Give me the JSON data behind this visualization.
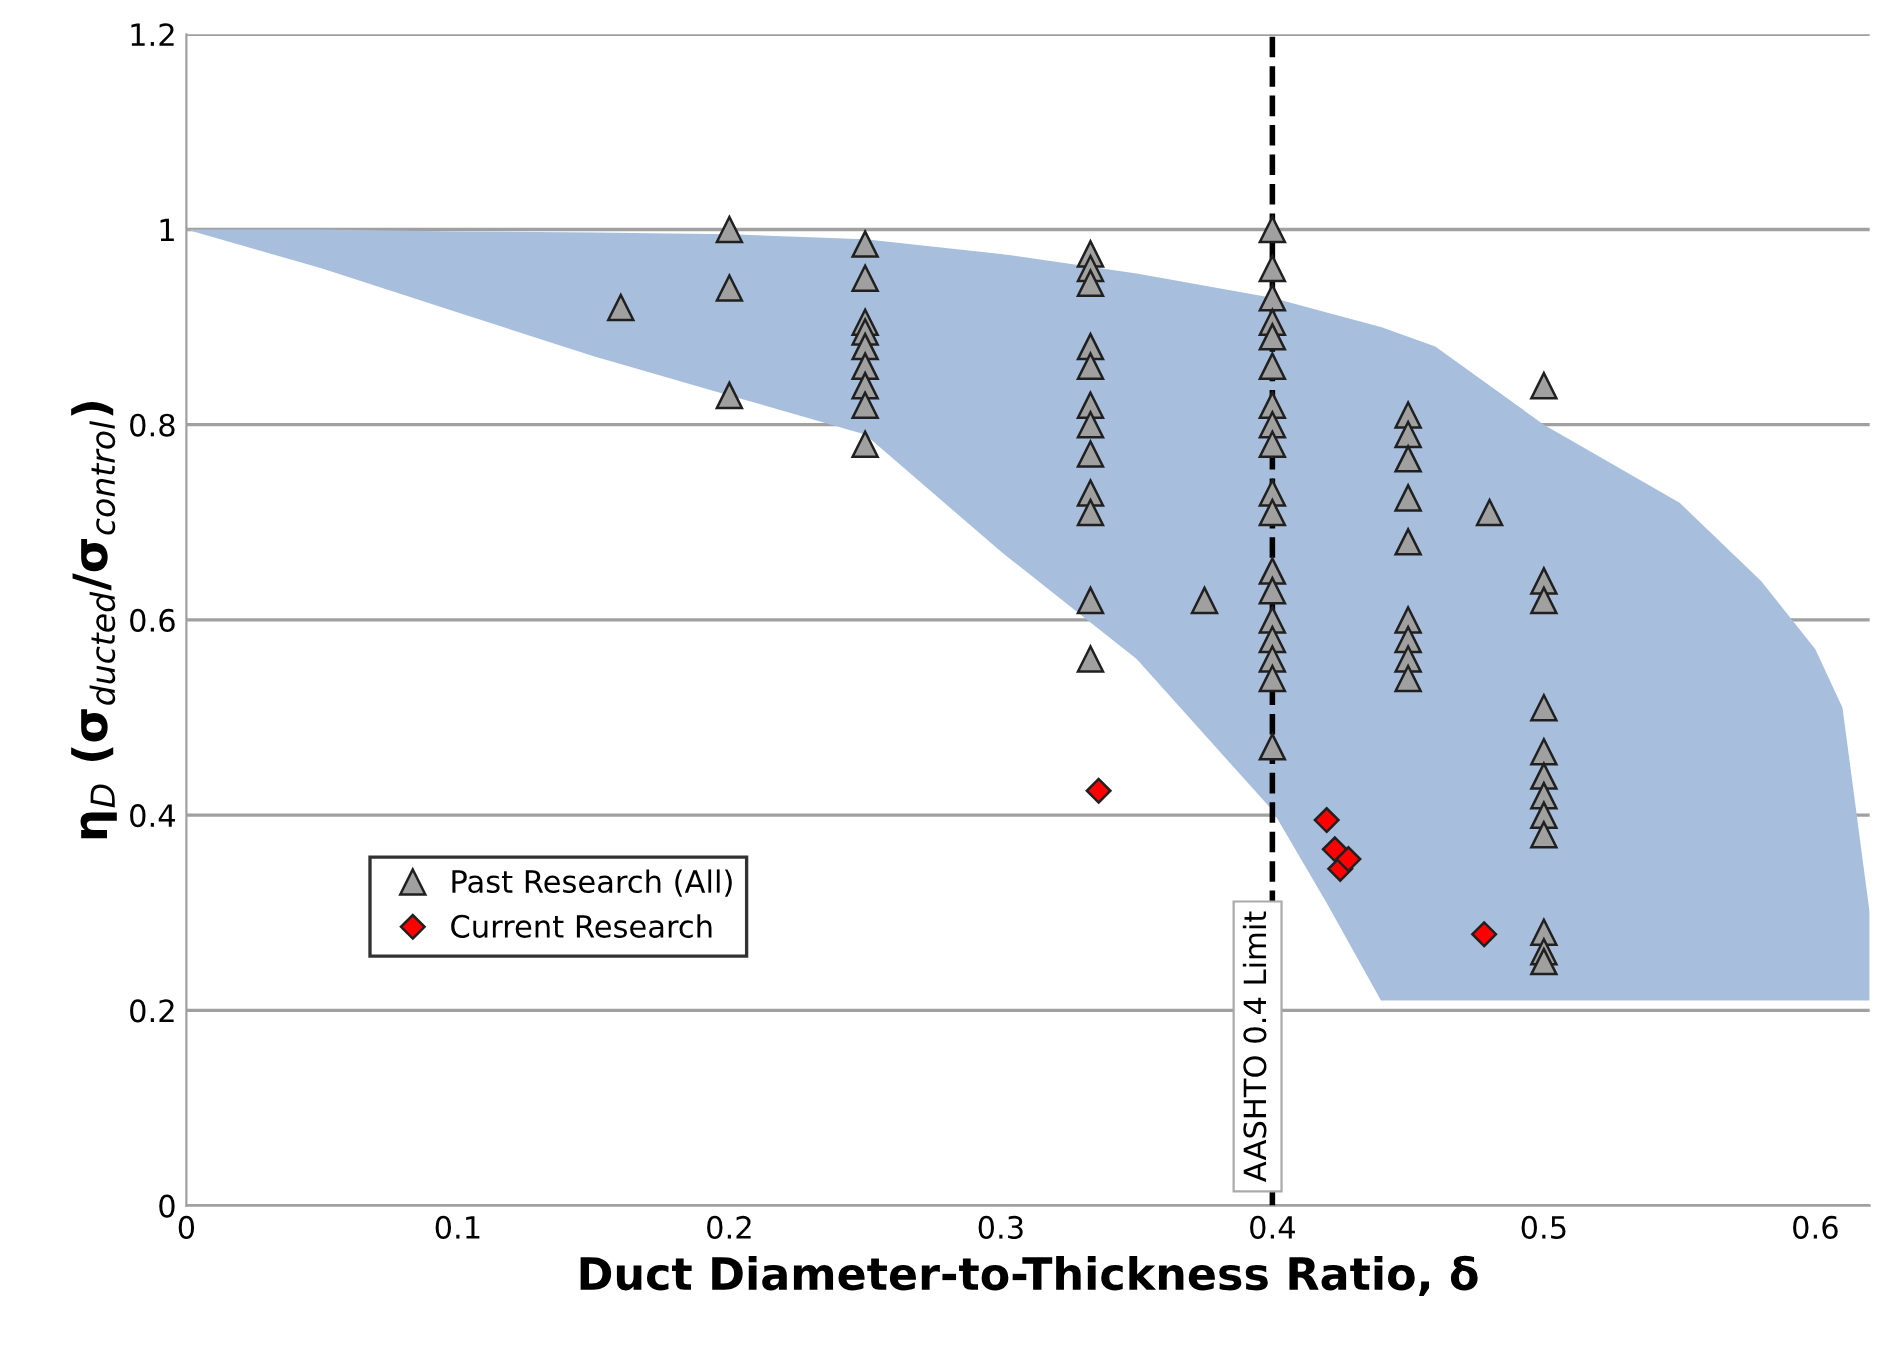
{
  "chart_data": {
    "type": "scatter",
    "xlabel": "Duct Diameter-to-Thickness Ratio, δ",
    "ylabel": "η$_{D}$ (σ$_{ducted}$/σ$_{control}$)",
    "xlim": [
      0,
      0.62
    ],
    "xticks": [
      0,
      0.1,
      0.2,
      0.3,
      0.4,
      0.5,
      0.6
    ],
    "ylim": [
      0,
      1.2
    ],
    "yticks": [
      0,
      0.2,
      0.4,
      0.6,
      0.8,
      1,
      1.2
    ],
    "grid": "y",
    "legend": "bottom left",
    "ref_lines": [
      {
        "axis": "x",
        "value": 0.4,
        "label": "AASHTO 0.4 Limit",
        "color": "#000000",
        "line_style": "dashed"
      }
    ],
    "series": [
      {
        "type": "area",
        "color": "#a7bfdd",
        "x": [
          0,
          0.05,
          0.1,
          0.15,
          0.2,
          0.25,
          0.3,
          0.35,
          0.4,
          0.42,
          0.44,
          0.46,
          0.5,
          0.55,
          0.58,
          0.6,
          0.61,
          0.62
        ],
        "values": [
          null,
          null,
          null,
          null,
          null,
          null,
          null,
          null,
          null,
          null,
          null,
          null,
          null,
          null,
          null,
          null,
          null,
          null
        ],
        "upper": [
          1,
          1,
          0.998,
          0.997,
          0.995,
          0.99,
          0.975,
          0.955,
          0.93,
          0.915,
          0.9,
          0.88,
          0.8,
          0.72,
          0.64,
          0.57,
          0.51,
          0.3
        ],
        "lower": [
          1,
          0.96,
          0.915,
          0.87,
          0.83,
          0.79,
          0.67,
          0.56,
          0.405,
          0.31,
          0.21,
          0.21,
          0.21,
          0.21,
          0.21,
          0.21,
          0.21,
          0.21
        ]
      },
      {
        "name": "Past Research (All)",
        "marker": "triangle",
        "color": "#a0a0a0",
        "x": [
          0.16,
          0.2,
          0.2,
          0.2,
          0.25,
          0.25,
          0.25,
          0.25,
          0.25,
          0.25,
          0.25,
          0.25,
          0.25,
          0.333,
          0.333,
          0.333,
          0.333,
          0.333,
          0.333,
          0.333,
          0.333,
          0.333,
          0.333,
          0.333,
          0.333,
          0.375,
          0.4,
          0.4,
          0.4,
          0.4,
          0.4,
          0.4,
          0.4,
          0.4,
          0.4,
          0.4,
          0.4,
          0.4,
          0.4,
          0.4,
          0.4,
          0.4,
          0.4,
          0.4,
          0.45,
          0.45,
          0.45,
          0.45,
          0.45,
          0.45,
          0.45,
          0.45,
          0.45,
          0.48,
          0.5,
          0.5,
          0.5,
          0.5,
          0.5,
          0.5,
          0.5,
          0.5,
          0.5,
          0.5,
          0.5,
          0.5
        ],
        "values": [
          0.92,
          1.0,
          0.94,
          0.83,
          0.985,
          0.95,
          0.905,
          0.895,
          0.88,
          0.86,
          0.84,
          0.82,
          0.78,
          0.975,
          0.96,
          0.945,
          0.88,
          0.86,
          0.82,
          0.8,
          0.77,
          0.73,
          0.71,
          0.62,
          0.56,
          0.62,
          1.0,
          0.96,
          0.93,
          0.905,
          0.89,
          0.86,
          0.82,
          0.8,
          0.78,
          0.73,
          0.71,
          0.65,
          0.63,
          0.6,
          0.58,
          0.56,
          0.54,
          0.47,
          0.81,
          0.79,
          0.765,
          0.725,
          0.68,
          0.6,
          0.58,
          0.56,
          0.54,
          0.71,
          0.84,
          0.64,
          0.62,
          0.51,
          0.465,
          0.44,
          0.42,
          0.4,
          0.38,
          0.28,
          0.26,
          0.25
        ]
      },
      {
        "name": "Current Research",
        "marker": "diamond",
        "color": "#ff0000",
        "x": [
          0.336,
          0.42,
          0.423,
          0.425,
          0.428,
          0.478
        ],
        "values": [
          0.425,
          0.395,
          0.365,
          0.345,
          0.355,
          0.278
        ]
      }
    ]
  }
}
